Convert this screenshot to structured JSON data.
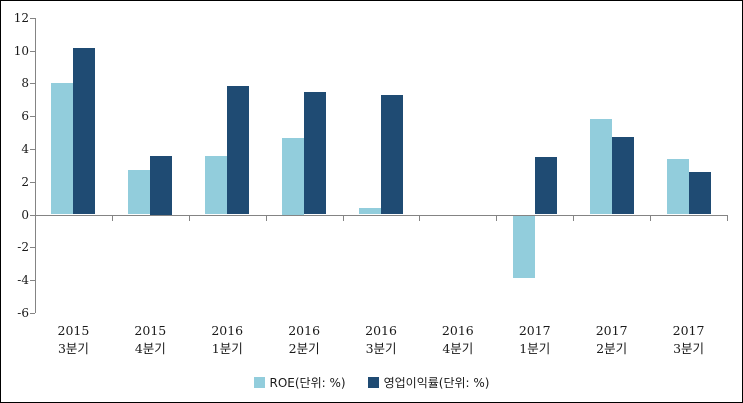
{
  "chart_data": {
    "type": "bar",
    "title": "",
    "xlabel": "",
    "ylabel": "",
    "categories": [
      {
        "line1": "2015",
        "line2": "3분기"
      },
      {
        "line1": "2015",
        "line2": "4분기"
      },
      {
        "line1": "2016",
        "line2": "1분기"
      },
      {
        "line1": "2016",
        "line2": "2분기"
      },
      {
        "line1": "2016",
        "line2": "3분기"
      },
      {
        "line1": "2016",
        "line2": "4분기"
      },
      {
        "line1": "2017",
        "line2": "1분기"
      },
      {
        "line1": "2017",
        "line2": "2분기"
      },
      {
        "line1": "2017",
        "line2": "3분기"
      }
    ],
    "series": [
      {
        "name": "ROE(단위: %)",
        "color": "#92CDDC",
        "values": [
          8.0,
          2.7,
          3.55,
          4.7,
          0.4,
          0,
          -3.8,
          5.85,
          3.4
        ]
      },
      {
        "name": "영업이익률(단위: %)",
        "color": "#1F4B73",
        "values": [
          10.15,
          3.6,
          7.85,
          7.5,
          7.3,
          0,
          3.5,
          4.75,
          2.6
        ]
      }
    ],
    "ylim": [
      -6,
      12
    ],
    "yticks": [
      12,
      10,
      8,
      6,
      4,
      2,
      0,
      -2,
      -4,
      -6
    ],
    "grid": false,
    "legend_position": "bottom-center",
    "axis_color": "#848484",
    "text_color": "#1A1A1A"
  }
}
